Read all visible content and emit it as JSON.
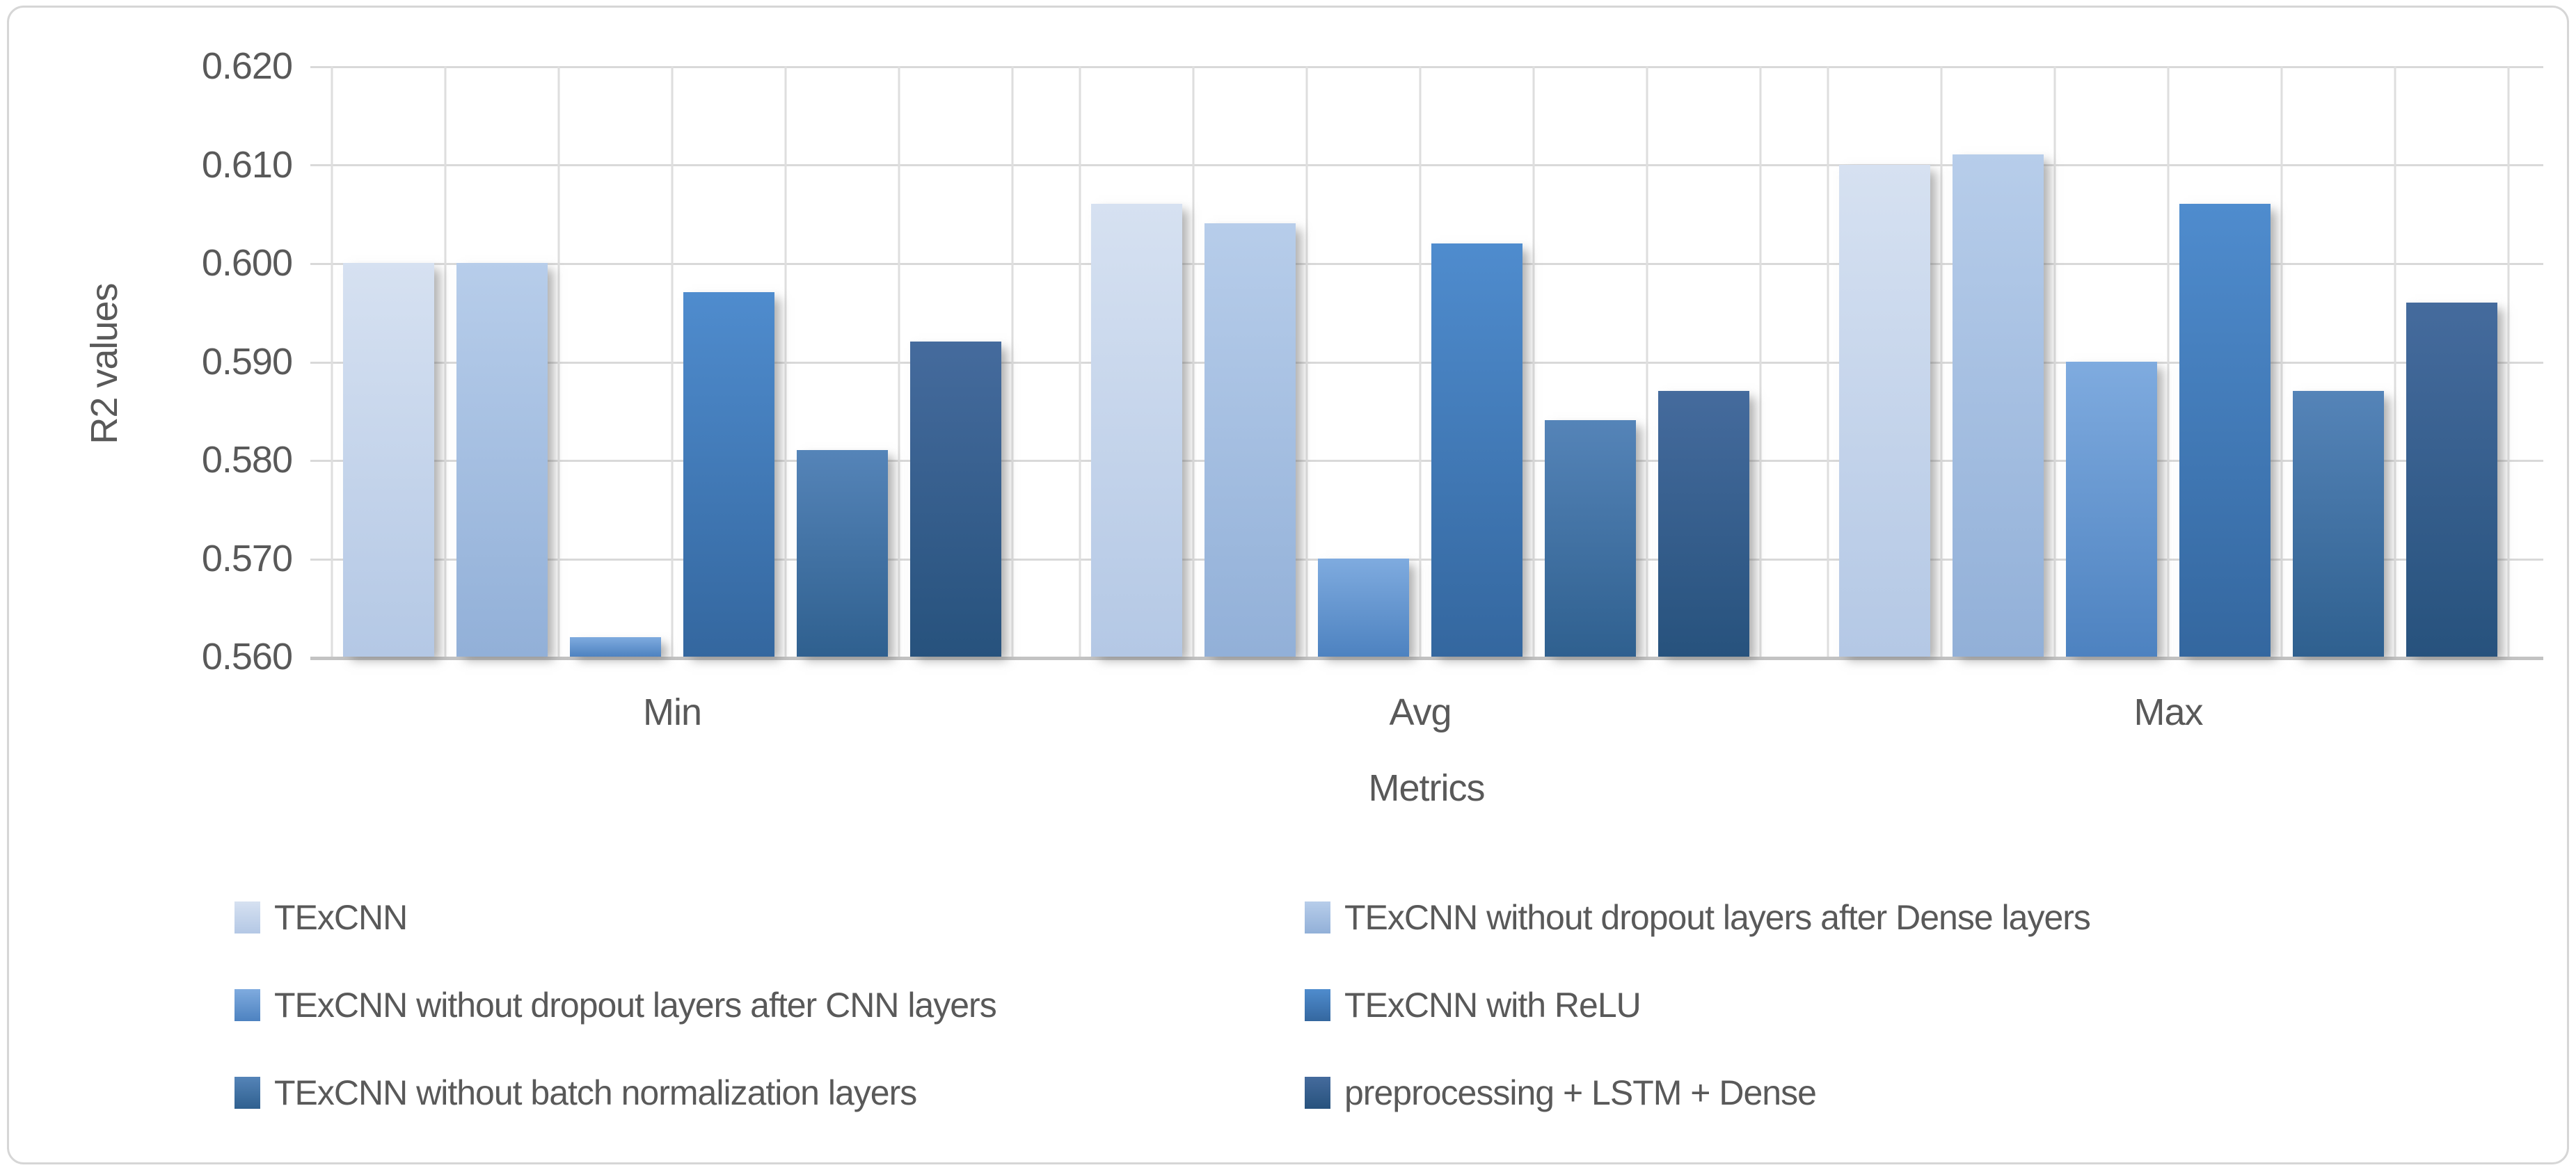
{
  "figure": {
    "background": "#ffffff",
    "border_color": "#d6d6d6"
  },
  "chart_data": {
    "type": "bar",
    "title": "",
    "categories": [
      "Min",
      "Avg",
      "Max"
    ],
    "series": [
      {
        "name": "TExCNN",
        "values": [
          0.6,
          0.606,
          0.61
        ],
        "color_top": "#d6e1f1",
        "color_bottom": "#b4c8e5"
      },
      {
        "name": "TExCNN without dropout layers after Dense layers",
        "values": [
          0.6,
          0.604,
          0.611
        ],
        "color_top": "#b7cdea",
        "color_bottom": "#92b0d8"
      },
      {
        "name": "TExCNN without dropout layers after CNN layers",
        "values": [
          0.562,
          0.57,
          0.59
        ],
        "color_top": "#7fabdf",
        "color_bottom": "#4d82c0"
      },
      {
        "name": "TExCNN with ReLU",
        "values": [
          0.597,
          0.602,
          0.606
        ],
        "color_top": "#4f8cce",
        "color_bottom": "#34679f"
      },
      {
        "name": "TExCNN without batch normalization layers",
        "values": [
          0.581,
          0.584,
          0.587
        ],
        "color_top": "#5584b8",
        "color_bottom": "#2f608f"
      },
      {
        "name": "preprocessing + LSTM + Dense",
        "values": [
          0.592,
          0.587,
          0.596
        ],
        "color_top": "#456b9d",
        "color_bottom": "#27527d"
      }
    ],
    "xlabel": "Metrics",
    "ylabel": "R2 values",
    "ylim": [
      0.56,
      0.62
    ],
    "ytick_step": 0.01,
    "yticks": [
      "0.620",
      "0.610",
      "0.600",
      "0.590",
      "0.580",
      "0.570",
      "0.560"
    ],
    "grid": true,
    "gridline_color": "#d9d9d9",
    "axis_line_color": "#c3c3c3",
    "slot_line_color": "#dedede",
    "text_color": "#595959",
    "legend_position": "bottom",
    "legend_rows": [
      [
        0,
        1
      ],
      [
        2,
        3
      ],
      [
        4,
        5
      ]
    ]
  }
}
